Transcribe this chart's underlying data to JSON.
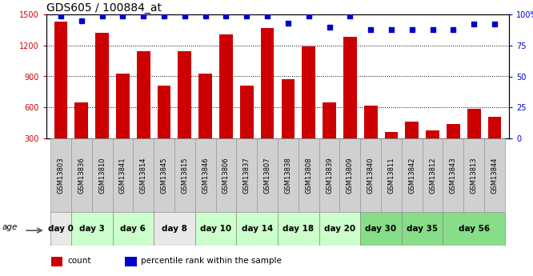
{
  "title": "GDS605 / 100884_at",
  "samples": [
    "GSM13803",
    "GSM13836",
    "GSM13810",
    "GSM13841",
    "GSM13814",
    "GSM13845",
    "GSM13815",
    "GSM13846",
    "GSM13806",
    "GSM13837",
    "GSM13807",
    "GSM13838",
    "GSM13808",
    "GSM13839",
    "GSM13809",
    "GSM13840",
    "GSM13811",
    "GSM13842",
    "GSM13812",
    "GSM13843",
    "GSM13813",
    "GSM13844"
  ],
  "counts": [
    1430,
    645,
    1320,
    930,
    1140,
    810,
    1140,
    930,
    1310,
    810,
    1370,
    870,
    1190,
    645,
    1280,
    620,
    360,
    460,
    380,
    440,
    590,
    510
  ],
  "percentile": [
    99,
    95,
    99,
    99,
    99,
    99,
    99,
    99,
    99,
    99,
    99,
    93,
    99,
    90,
    99,
    88,
    88,
    88,
    88,
    88,
    92,
    92
  ],
  "bar_color": "#cc0000",
  "dot_color": "#0000cc",
  "ylim_left": [
    300,
    1500
  ],
  "ylim_right": [
    0,
    100
  ],
  "yticks_left": [
    300,
    600,
    900,
    1200,
    1500
  ],
  "yticks_right": [
    0,
    25,
    50,
    75,
    100
  ],
  "day_groups": [
    {
      "label": "day 0",
      "start": 0,
      "end": 0,
      "color": "#e8e8e8"
    },
    {
      "label": "day 3",
      "start": 1,
      "end": 2,
      "color": "#ccffcc"
    },
    {
      "label": "day 6",
      "start": 3,
      "end": 4,
      "color": "#ccffcc"
    },
    {
      "label": "day 8",
      "start": 5,
      "end": 6,
      "color": "#e8e8e8"
    },
    {
      "label": "day 10",
      "start": 7,
      "end": 8,
      "color": "#ccffcc"
    },
    {
      "label": "day 14",
      "start": 9,
      "end": 10,
      "color": "#ccffcc"
    },
    {
      "label": "day 18",
      "start": 11,
      "end": 12,
      "color": "#ccffcc"
    },
    {
      "label": "day 20",
      "start": 13,
      "end": 14,
      "color": "#ccffcc"
    },
    {
      "label": "day 30",
      "start": 15,
      "end": 16,
      "color": "#88dd88"
    },
    {
      "label": "day 35",
      "start": 17,
      "end": 18,
      "color": "#88dd88"
    },
    {
      "label": "day 56",
      "start": 19,
      "end": 21,
      "color": "#88dd88"
    }
  ],
  "sample_box_color": "#d0d0d0",
  "legend_count_label": "count",
  "legend_pct_label": "percentile rank within the sample"
}
